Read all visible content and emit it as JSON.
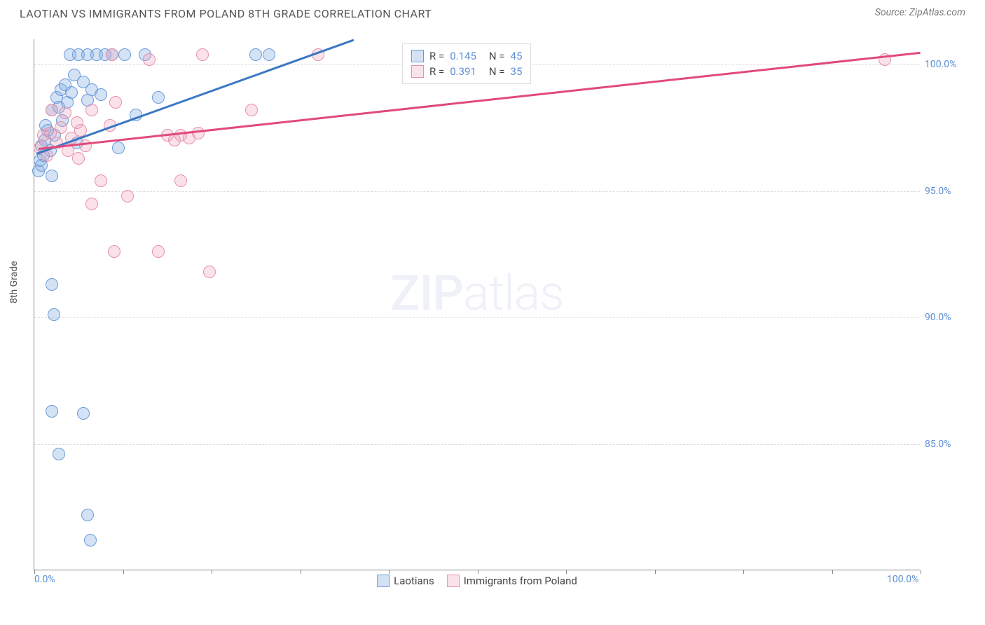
{
  "header": {
    "title": "LAOTIAN VS IMMIGRANTS FROM POLAND 8TH GRADE CORRELATION CHART",
    "source": "Source: ZipAtlas.com"
  },
  "chart": {
    "type": "scatter",
    "y_axis_title": "8th Grade",
    "watermark_bold": "ZIP",
    "watermark_light": "atlas",
    "background_color": "#ffffff",
    "axis_color": "#888888",
    "grid_color": "#dcdcdc",
    "tick_label_color": "#5b8fd6",
    "xlim": [
      0,
      100
    ],
    "ylim": [
      80,
      101
    ],
    "x_ticks": [
      0,
      10,
      20,
      30,
      40,
      50,
      60,
      70,
      80,
      90,
      100
    ],
    "x_tick_labels": {
      "0": "0.0%",
      "100": "100.0%"
    },
    "y_ticks": [
      85,
      90,
      95,
      100
    ],
    "y_tick_labels": {
      "85": "85.0%",
      "90": "90.0%",
      "95": "95.0%",
      "100": "100.0%"
    },
    "marker_radius": 9,
    "marker_stroke_width": 1.5,
    "trend_line_width": 2.5,
    "series": [
      {
        "name": "Laotians",
        "fill_color": "rgba(131,171,226,0.35)",
        "stroke_color": "#6a9bd8",
        "line_color": "#3b78c4",
        "R": "0.145",
        "N": "45",
        "trend": {
          "x1": 0.2,
          "y1": 96.5,
          "x2": 36,
          "y2": 101
        },
        "points": [
          {
            "x": 0.5,
            "y": 95.8
          },
          {
            "x": 0.6,
            "y": 96.2
          },
          {
            "x": 0.8,
            "y": 96.8
          },
          {
            "x": 1.0,
            "y": 96.4
          },
          {
            "x": 1.2,
            "y": 97.0
          },
          {
            "x": 1.5,
            "y": 97.4
          },
          {
            "x": 1.8,
            "y": 96.6
          },
          {
            "x": 2.0,
            "y": 98.2
          },
          {
            "x": 2.0,
            "y": 95.6
          },
          {
            "x": 2.3,
            "y": 97.2
          },
          {
            "x": 2.5,
            "y": 98.7
          },
          {
            "x": 2.8,
            "y": 98.3
          },
          {
            "x": 3.0,
            "y": 99.0
          },
          {
            "x": 3.2,
            "y": 97.8
          },
          {
            "x": 3.5,
            "y": 99.2
          },
          {
            "x": 3.7,
            "y": 98.5
          },
          {
            "x": 4.0,
            "y": 100.4
          },
          {
            "x": 4.2,
            "y": 98.9
          },
          {
            "x": 4.5,
            "y": 99.6
          },
          {
            "x": 4.8,
            "y": 96.9
          },
          {
            "x": 5.0,
            "y": 100.4
          },
          {
            "x": 5.5,
            "y": 99.3
          },
          {
            "x": 6.0,
            "y": 98.6
          },
          {
            "x": 6.0,
            "y": 100.4
          },
          {
            "x": 6.5,
            "y": 99.0
          },
          {
            "x": 7.0,
            "y": 100.4
          },
          {
            "x": 7.5,
            "y": 98.8
          },
          {
            "x": 8.0,
            "y": 100.4
          },
          {
            "x": 8.8,
            "y": 100.4
          },
          {
            "x": 9.5,
            "y": 96.7
          },
          {
            "x": 10.2,
            "y": 100.4
          },
          {
            "x": 11.5,
            "y": 98.0
          },
          {
            "x": 12.5,
            "y": 100.4
          },
          {
            "x": 14.0,
            "y": 98.7
          },
          {
            "x": 25.0,
            "y": 100.4
          },
          {
            "x": 26.5,
            "y": 100.4
          },
          {
            "x": 2.0,
            "y": 91.3
          },
          {
            "x": 2.2,
            "y": 90.1
          },
          {
            "x": 2.0,
            "y": 86.3
          },
          {
            "x": 5.5,
            "y": 86.2
          },
          {
            "x": 2.8,
            "y": 84.6
          },
          {
            "x": 6.0,
            "y": 82.2
          },
          {
            "x": 6.3,
            "y": 81.2
          },
          {
            "x": 0.8,
            "y": 96.0
          },
          {
            "x": 1.3,
            "y": 97.6
          }
        ]
      },
      {
        "name": "Immigrants from Poland",
        "fill_color": "rgba(240,160,185,0.30)",
        "stroke_color": "#e691ac",
        "line_color": "#e14a7a",
        "R": "0.391",
        "N": "35",
        "trend": {
          "x1": 0.5,
          "y1": 96.7,
          "x2": 100,
          "y2": 100.5
        },
        "points": [
          {
            "x": 0.6,
            "y": 96.7
          },
          {
            "x": 1.0,
            "y": 97.2
          },
          {
            "x": 1.4,
            "y": 96.4
          },
          {
            "x": 1.8,
            "y": 97.3
          },
          {
            "x": 2.0,
            "y": 98.2
          },
          {
            "x": 2.5,
            "y": 96.9
          },
          {
            "x": 3.0,
            "y": 97.5
          },
          {
            "x": 3.5,
            "y": 98.1
          },
          {
            "x": 3.8,
            "y": 96.6
          },
          {
            "x": 4.2,
            "y": 97.1
          },
          {
            "x": 4.8,
            "y": 97.7
          },
          {
            "x": 5.2,
            "y": 97.4
          },
          {
            "x": 5.8,
            "y": 96.8
          },
          {
            "x": 6.5,
            "y": 98.2
          },
          {
            "x": 7.5,
            "y": 95.4
          },
          {
            "x": 8.5,
            "y": 97.6
          },
          {
            "x": 8.8,
            "y": 100.4
          },
          {
            "x": 9.2,
            "y": 98.5
          },
          {
            "x": 10.5,
            "y": 94.8
          },
          {
            "x": 13.0,
            "y": 100.2
          },
          {
            "x": 15.0,
            "y": 97.2
          },
          {
            "x": 15.8,
            "y": 97.0
          },
          {
            "x": 16.5,
            "y": 97.2
          },
          {
            "x": 17.5,
            "y": 97.1
          },
          {
            "x": 18.5,
            "y": 97.3
          },
          {
            "x": 19.0,
            "y": 100.4
          },
          {
            "x": 24.5,
            "y": 98.2
          },
          {
            "x": 32.0,
            "y": 100.4
          },
          {
            "x": 6.5,
            "y": 94.5
          },
          {
            "x": 9.0,
            "y": 92.6
          },
          {
            "x": 14.0,
            "y": 92.6
          },
          {
            "x": 16.5,
            "y": 95.4
          },
          {
            "x": 19.8,
            "y": 91.8
          },
          {
            "x": 96.0,
            "y": 100.2
          },
          {
            "x": 5.0,
            "y": 96.3
          }
        ]
      }
    ],
    "legend_bottom": [
      {
        "label": "Laotians",
        "fill": "rgba(131,171,226,0.35)",
        "stroke": "#6a9bd8"
      },
      {
        "label": "Immigrants from Poland",
        "fill": "rgba(240,160,185,0.30)",
        "stroke": "#e691ac"
      }
    ]
  }
}
